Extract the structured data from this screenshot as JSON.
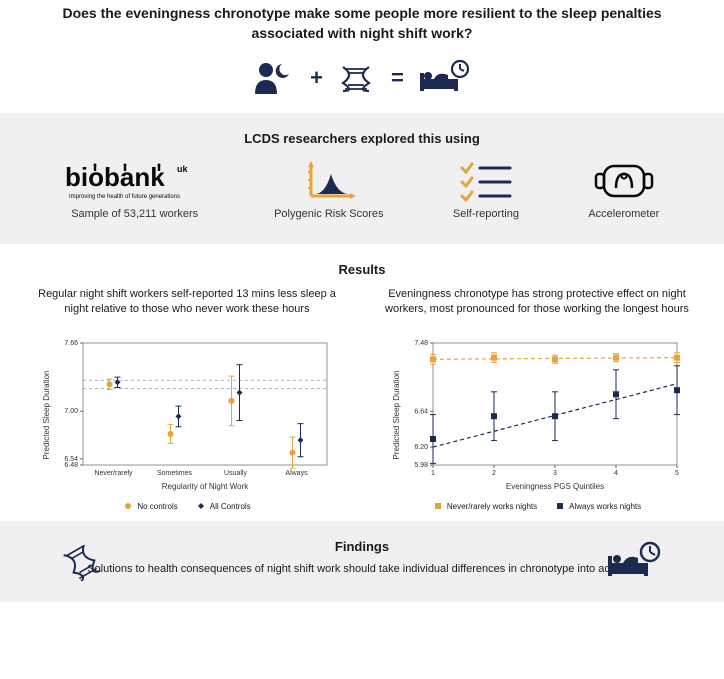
{
  "title": "Does the eveningness chronotype make some people more resilient to the sleep penalties associated with night shift work?",
  "colors": {
    "navy": "#1c2a52",
    "orange": "#e8a33d",
    "grey_bg": "#f0f0f0",
    "black": "#0a0a0a"
  },
  "methods": {
    "heading": "LCDS researchers explored this using",
    "items": [
      {
        "label": "Sample of 53,211 workers",
        "icon": "biobank"
      },
      {
        "label": "Polygenic Risk Scores",
        "icon": "prs"
      },
      {
        "label": "Self-reporting",
        "icon": "checklist"
      },
      {
        "label": "Accelerometer",
        "icon": "watch"
      }
    ]
  },
  "results": {
    "heading": "Results",
    "chart1": {
      "caption": "Regular night shift workers self-reported 13 mins less sleep a night relative to those who never work these hours",
      "type": "errorbar",
      "ylabel": "Predicted Sleep Duration",
      "xlabel": "Regularity of Night Work",
      "ylim": [
        6.48,
        7.66
      ],
      "yticks": [
        6.48,
        6.54,
        7.0,
        7.66
      ],
      "categories": [
        "Never/rarely",
        "Sometimes",
        "Usually",
        "Always"
      ],
      "hline1": 7.3,
      "hline2": 7.22,
      "series": [
        {
          "name": "No controls",
          "color": "#e8a33d",
          "marker": "circle",
          "y": [
            7.26,
            6.78,
            7.1,
            6.6
          ],
          "err": [
            0.05,
            0.09,
            0.24,
            0.15
          ]
        },
        {
          "name": "All Controls",
          "color": "#1c2a52",
          "marker": "diamond",
          "y": [
            7.28,
            6.95,
            7.18,
            6.72
          ],
          "err": [
            0.05,
            0.1,
            0.27,
            0.16
          ]
        }
      ],
      "legend": [
        {
          "label": "No controls",
          "color": "#e8a33d",
          "marker": "circle"
        },
        {
          "label": "All Controls",
          "color": "#1c2a52",
          "marker": "diamond"
        }
      ]
    },
    "chart2": {
      "caption": "Eveningness chronotype has strong protective effect on night workers, most pronounced for those working the longest hours",
      "type": "errorbar",
      "ylabel": "Predicted Sleep Duration",
      "xlabel": "Eveningness PGS Quintiles",
      "ylim": [
        5.98,
        7.48
      ],
      "yticks": [
        5.98,
        6.2,
        6.64,
        7.48
      ],
      "x": [
        1,
        2,
        3,
        4,
        5
      ],
      "series": [
        {
          "name": "Never/rarely works nights",
          "color": "#e8a33d",
          "marker": "square",
          "y": [
            7.28,
            7.3,
            7.28,
            7.3,
            7.3
          ],
          "err": [
            0.06,
            0.06,
            0.05,
            0.05,
            0.06
          ],
          "trend": [
            7.28,
            7.3
          ]
        },
        {
          "name": "Always works nights",
          "color": "#1c2a52",
          "marker": "square",
          "y": [
            6.3,
            6.58,
            6.58,
            6.85,
            6.9
          ],
          "err": [
            0.3,
            0.3,
            0.3,
            0.3,
            0.3
          ],
          "trend": [
            6.2,
            6.98
          ]
        }
      ],
      "legend": [
        {
          "label": "Never/rarely works nights",
          "color": "#e8a33d",
          "marker": "square"
        },
        {
          "label": "Always works nights",
          "color": "#1c2a52",
          "marker": "square"
        }
      ]
    }
  },
  "findings": {
    "heading": "Findings",
    "text": "Solutions to health consequences of night shift work should take individual differences in chronotype into account"
  }
}
